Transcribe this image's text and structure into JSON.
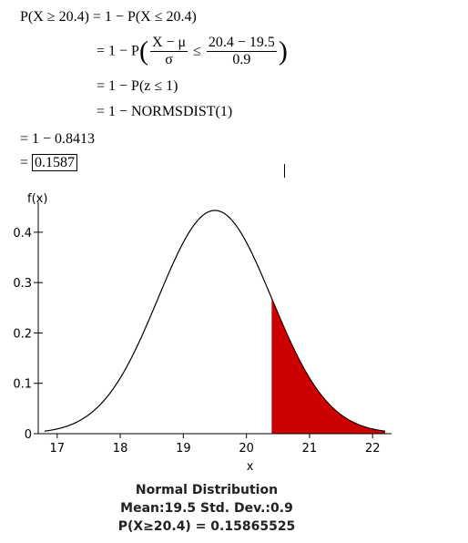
{
  "derivation": {
    "line1_lhs": "P(X ≥ 20.4)",
    "line1_rhs": "= 1 − P(X ≤ 20.4)",
    "line2_prefix": "= 1 − P",
    "line2_num_left": "X − μ",
    "line2_den_left": "σ",
    "line2_rel": "≤",
    "line2_num_right": "20.4 − 19.5",
    "line2_den_right": "0.9",
    "line3": "= 1 − P(z ≤ 1)",
    "line4": "= 1 − NORMSDIST(1)",
    "line5": "= 1 − 0.8413",
    "line6_prefix": "=",
    "line6_boxed": "0.1587"
  },
  "chart_data": {
    "type": "area",
    "ylabel": "f(x)",
    "xlabel": "x",
    "mean": 19.5,
    "sd": 0.9,
    "xlim": [
      16.7,
      22.3
    ],
    "ylim": [
      0,
      0.445
    ],
    "x_ticks": [
      "17",
      "18",
      "19",
      "20",
      "21",
      "22"
    ],
    "y_ticks": [
      "0",
      "0.1",
      "0.2",
      "0.3",
      "0.4"
    ],
    "shade_from": 20.4,
    "shade_to": 22.2,
    "shade_color": "#cc0000"
  },
  "caption": {
    "title": "Normal Distribution",
    "params": "Mean:19.5  Std. Dev.:0.9",
    "result": "P(X≥20.4) = 0.15865525"
  }
}
